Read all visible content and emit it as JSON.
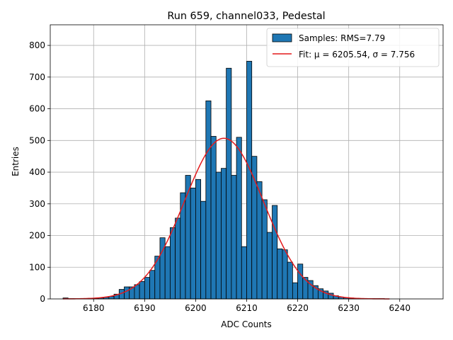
{
  "chart_data": {
    "type": "bar",
    "title": "Run 659, channel033, Pedestal",
    "xlabel": "ADC Counts",
    "ylabel": "Entries",
    "xlim": [
      6171.5,
      6248.5
    ],
    "ylim": [
      0,
      865
    ],
    "xticks": [
      6180,
      6190,
      6200,
      6210,
      6220,
      6230,
      6240
    ],
    "yticks": [
      0,
      100,
      200,
      300,
      400,
      500,
      600,
      700,
      800
    ],
    "grid": true,
    "legend_position": "upper-right",
    "bin_width": 1,
    "bins": [
      6174,
      6175,
      6176,
      6177,
      6178,
      6179,
      6180,
      6181,
      6182,
      6183,
      6184,
      6185,
      6186,
      6187,
      6188,
      6189,
      6190,
      6191,
      6192,
      6193,
      6194,
      6195,
      6196,
      6197,
      6198,
      6199,
      6200,
      6201,
      6202,
      6203,
      6204,
      6205,
      6206,
      6207,
      6208,
      6209,
      6210,
      6211,
      6212,
      6213,
      6214,
      6215,
      6216,
      6217,
      6218,
      6219,
      6220,
      6221,
      6222,
      6223,
      6224,
      6225,
      6226,
      6227,
      6228,
      6229,
      6230,
      6231,
      6232,
      6233,
      6234,
      6235,
      6236,
      6237
    ],
    "values": [
      3,
      1,
      1,
      1,
      1,
      2,
      2,
      3,
      5,
      8,
      15,
      30,
      38,
      38,
      45,
      55,
      68,
      90,
      135,
      193,
      165,
      225,
      255,
      335,
      390,
      350,
      377,
      308,
      625,
      513,
      400,
      412,
      728,
      390,
      510,
      165,
      750,
      450,
      370,
      313,
      210,
      295,
      158,
      155,
      116,
      51,
      110,
      68,
      58,
      42,
      32,
      25,
      18,
      10,
      6,
      4,
      3,
      2,
      1,
      1,
      1,
      1,
      1,
      0
    ],
    "series": [
      {
        "name": "Samples: RMS=7.79",
        "type": "histogram",
        "color": "#1f77b4",
        "edgecolor": "#000000"
      },
      {
        "name": "Fit: μ = 6205.54, σ = 7.756",
        "type": "line",
        "color": "#e41a1c",
        "mu": 6205.54,
        "sigma": 7.756,
        "amplitude": 507
      }
    ]
  }
}
